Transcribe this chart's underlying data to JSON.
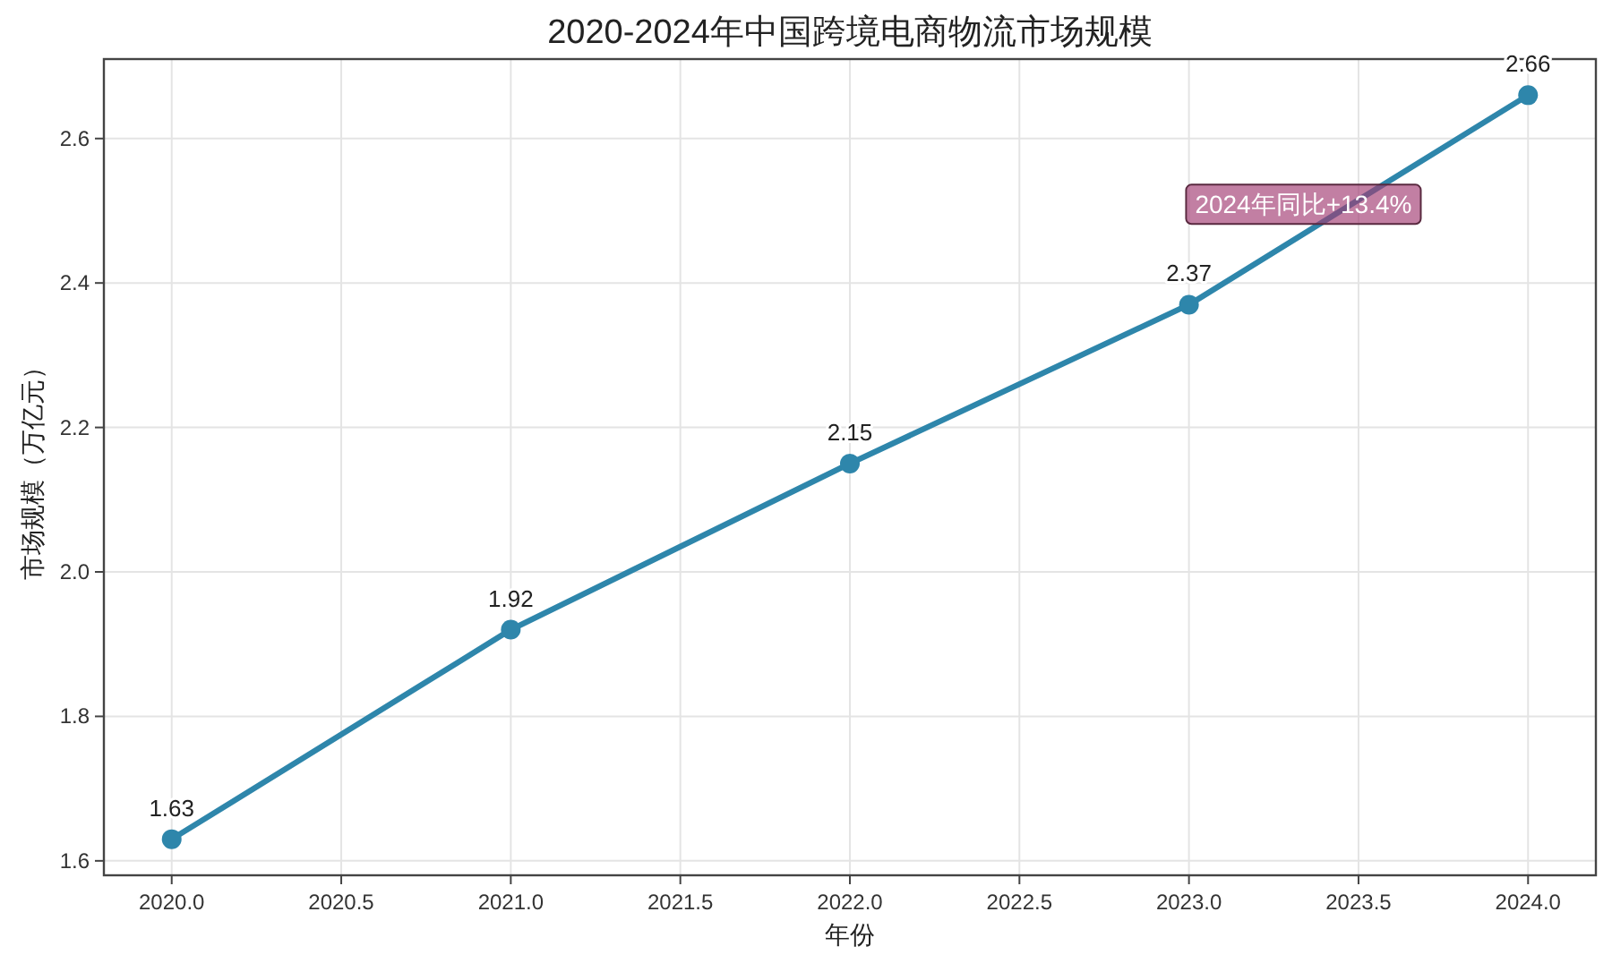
{
  "chart_data": {
    "type": "line",
    "title": "2020-2024年中国跨境电商物流市场规模",
    "xlabel": "年份",
    "ylabel": "市场规模（万亿元）",
    "x": [
      2020,
      2021,
      2022,
      2023,
      2024
    ],
    "values": [
      1.63,
      1.92,
      2.15,
      2.37,
      2.66
    ],
    "color": "#2e86ab",
    "xlim": [
      2019.8,
      2024.2
    ],
    "xticks": [
      {
        "value": 2020,
        "label": "2020.0"
      },
      {
        "value": 2020.5,
        "label": "2020.5"
      },
      {
        "value": 2021,
        "label": "2021.0"
      },
      {
        "value": 2021.5,
        "label": "2021.5"
      },
      {
        "value": 2022,
        "label": "2022.0"
      },
      {
        "value": 2022.5,
        "label": "2022.5"
      },
      {
        "value": 2023,
        "label": "2023.0"
      },
      {
        "value": 2023.5,
        "label": "2023.5"
      },
      {
        "value": 2024,
        "label": "2024.0"
      }
    ],
    "ylim": [
      1.58,
      2.71
    ],
    "yticks": [
      1.6,
      1.8,
      {
        "value": 2,
        "label": "2.0"
      },
      2.2,
      2.4,
      2.6
    ],
    "grid": true,
    "marker": "circle",
    "line_style": "solid",
    "data_labels": true,
    "annotations": [
      "2024年同比+13.4%"
    ]
  }
}
